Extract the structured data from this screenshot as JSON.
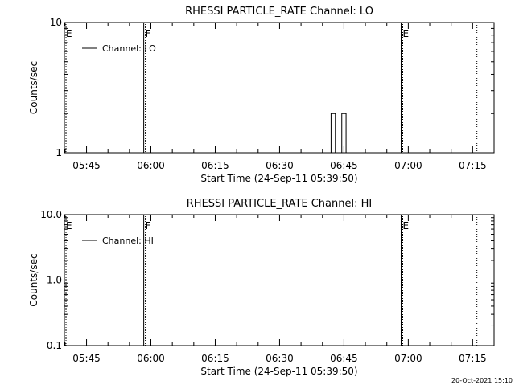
{
  "footer_timestamp": "20-Oct-2021 15:10",
  "chart_data": [
    {
      "type": "line",
      "title": "RHESSI PARTICLE_RATE Channel: LO",
      "xlabel": "Start Time (24-Sep-11 05:39:50)",
      "ylabel": "Counts/sec",
      "y_scale": "log",
      "ylim": [
        1,
        10
      ],
      "y_ticks": [
        {
          "value": 1,
          "label": "1"
        },
        {
          "value": 10,
          "label": "10"
        }
      ],
      "xlim": [
        "05:39:50",
        "07:20:00"
      ],
      "x_ticks": [
        "05:45",
        "06:00",
        "06:15",
        "06:30",
        "06:45",
        "07:00",
        "07:15"
      ],
      "legend": {
        "label": "Channel: LO",
        "placement": "top-left"
      },
      "markers": [
        {
          "time": "05:39:50",
          "label": "E",
          "style": "solid"
        },
        {
          "time": "05:58:20",
          "label": "F",
          "style": "solid"
        },
        {
          "time": "06:58:20",
          "label": "E",
          "style": "solid"
        },
        {
          "time": "07:16:00",
          "label": "",
          "style": "dotted"
        }
      ],
      "series": [
        {
          "x": [
            "06:41:30",
            "06:42:00",
            "06:42:30",
            "06:43:00",
            "06:43:30",
            "06:44:00",
            "06:44:30",
            "06:45:00",
            "06:45:30"
          ],
          "values": [
            1,
            2,
            2,
            1,
            1,
            1,
            2,
            2,
            1
          ]
        }
      ]
    },
    {
      "type": "line",
      "title": "RHESSI PARTICLE_RATE Channel: HI",
      "xlabel": "Start Time (24-Sep-11 05:39:50)",
      "ylabel": "Counts/sec",
      "y_scale": "log",
      "ylim": [
        0.1,
        10
      ],
      "y_ticks": [
        {
          "value": 0.1,
          "label": "0.1"
        },
        {
          "value": 1,
          "label": "1.0"
        },
        {
          "value": 10,
          "label": "10.0"
        }
      ],
      "xlim": [
        "05:39:50",
        "07:20:00"
      ],
      "x_ticks": [
        "05:45",
        "06:00",
        "06:15",
        "06:30",
        "06:45",
        "07:00",
        "07:15"
      ],
      "legend": {
        "label": "Channel: HI",
        "placement": "top-left"
      },
      "markers": [
        {
          "time": "05:39:50",
          "label": "E",
          "style": "solid"
        },
        {
          "time": "05:58:20",
          "label": "F",
          "style": "solid"
        },
        {
          "time": "06:58:20",
          "label": "E",
          "style": "solid"
        },
        {
          "time": "07:16:00",
          "label": "",
          "style": "dotted"
        }
      ],
      "series": []
    }
  ]
}
